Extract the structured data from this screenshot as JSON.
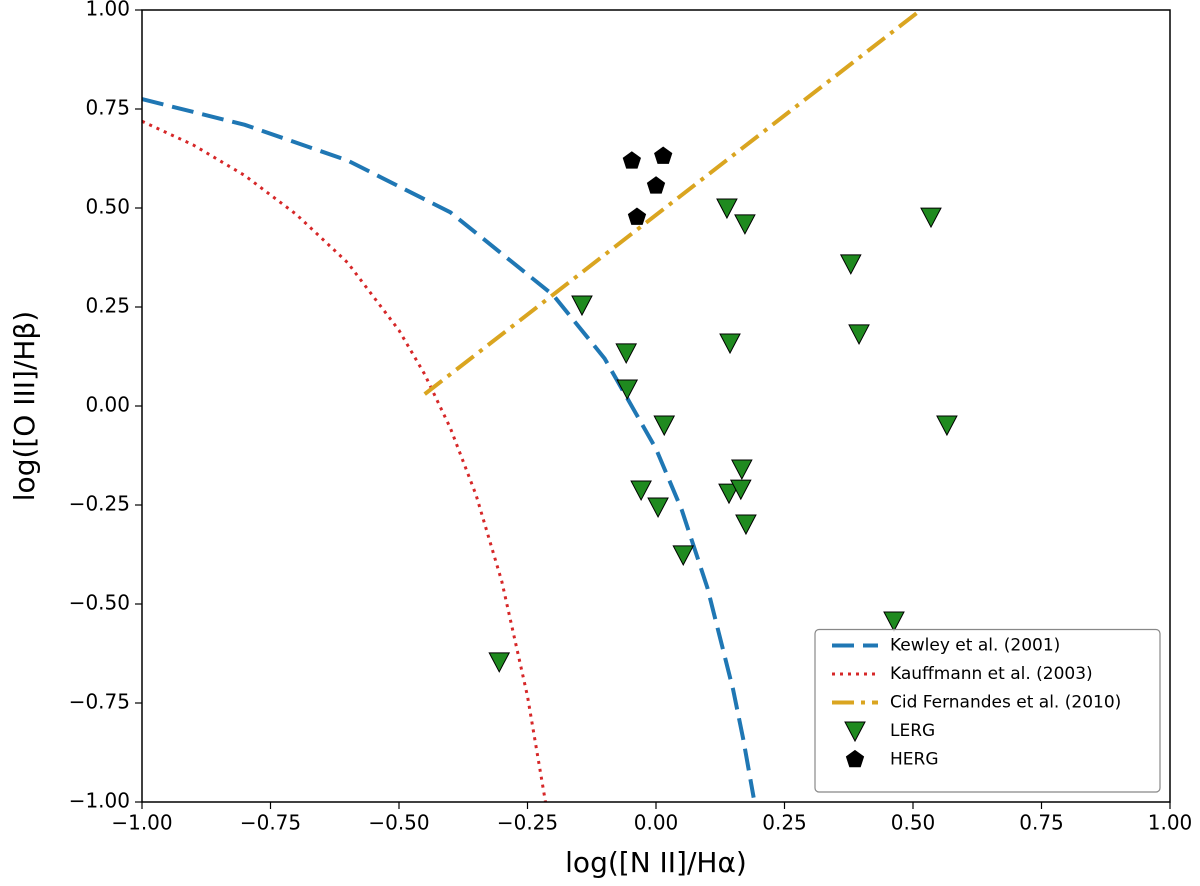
{
  "chart_data": {
    "type": "line",
    "x_label": "log([N II]/Hα)",
    "y_label": "log([O III]/Hβ)",
    "xlim": [
      -1.0,
      1.0
    ],
    "ylim": [
      -1.0,
      1.0
    ],
    "xticks": [
      {
        "value": -1.0,
        "label": "−1.00"
      },
      {
        "value": -0.75,
        "label": "−0.75"
      },
      {
        "value": -0.5,
        "label": "−0.50"
      },
      {
        "value": -0.25,
        "label": "−0.25"
      },
      {
        "value": 0.0,
        "label": "0.00"
      },
      {
        "value": 0.25,
        "label": "0.25"
      },
      {
        "value": 0.5,
        "label": "0.50"
      },
      {
        "value": 0.75,
        "label": "0.75"
      },
      {
        "value": 1.0,
        "label": "1.00"
      }
    ],
    "yticks": [
      {
        "value": -1.0,
        "label": "−1.00"
      },
      {
        "value": -0.75,
        "label": "−0.75"
      },
      {
        "value": -0.5,
        "label": "−0.50"
      },
      {
        "value": -0.25,
        "label": "−0.25"
      },
      {
        "value": 0.0,
        "label": "0.00"
      },
      {
        "value": 0.25,
        "label": "0.25"
      },
      {
        "value": 0.5,
        "label": "0.50"
      },
      {
        "value": 0.75,
        "label": "0.75"
      },
      {
        "value": 1.0,
        "label": "1.00"
      }
    ],
    "legend": "lower right",
    "series": [
      {
        "name": "Kewley et al. (2001)",
        "color": "#1f77b4",
        "mode": "line",
        "style": "dashed",
        "x": [
          -1.0,
          -0.8,
          -0.6,
          -0.4,
          -0.2,
          -0.1,
          0.0,
          0.05,
          0.1,
          0.15,
          0.17,
          0.19
        ],
        "values": [
          0.775,
          0.71,
          0.62,
          0.489,
          0.28,
          0.12,
          -0.108,
          -0.262,
          -0.459,
          -0.716,
          -0.843,
          -0.989
        ]
      },
      {
        "name": "Kauffmann et al. (2003)",
        "color": "#d62728",
        "mode": "line",
        "style": "dotted",
        "x": [
          -1.0,
          -0.9,
          -0.8,
          -0.7,
          -0.6,
          -0.5,
          -0.45,
          -0.4,
          -0.35,
          -0.3,
          -0.25,
          -0.215
        ],
        "values": [
          0.719,
          0.659,
          0.582,
          0.484,
          0.362,
          0.191,
          0.08,
          -0.056,
          -0.225,
          -0.443,
          -0.733,
          -1.0
        ]
      },
      {
        "name": "Cid Fernandes et al. (2010)",
        "color": "#daa520",
        "mode": "line",
        "style": "dashdot",
        "x": [
          -0.45,
          0.515
        ],
        "values": [
          0.03,
          1.0
        ]
      },
      {
        "name": "LERG",
        "color": "#1f8a1f",
        "mode": "marker",
        "marker": "triangle-down",
        "x": [
          -0.305,
          -0.144,
          -0.058,
          -0.056,
          0.016,
          -0.029,
          0.004,
          0.053,
          0.138,
          0.173,
          0.144,
          0.167,
          0.142,
          0.165,
          0.175,
          0.379,
          0.395,
          0.535,
          0.566,
          0.463
        ],
        "values": [
          -0.646,
          0.255,
          0.134,
          0.043,
          -0.048,
          -0.212,
          -0.255,
          -0.376,
          0.5,
          0.46,
          0.159,
          -0.159,
          -0.22,
          -0.21,
          -0.298,
          0.359,
          0.182,
          0.477,
          -0.048,
          -0.543
        ]
      },
      {
        "name": "HERG",
        "color": "#000000",
        "mode": "marker",
        "marker": "pentagon",
        "x": [
          -0.047,
          0.014,
          0.0,
          -0.037
        ],
        "values": [
          0.619,
          0.631,
          0.556,
          0.477
        ]
      }
    ]
  }
}
